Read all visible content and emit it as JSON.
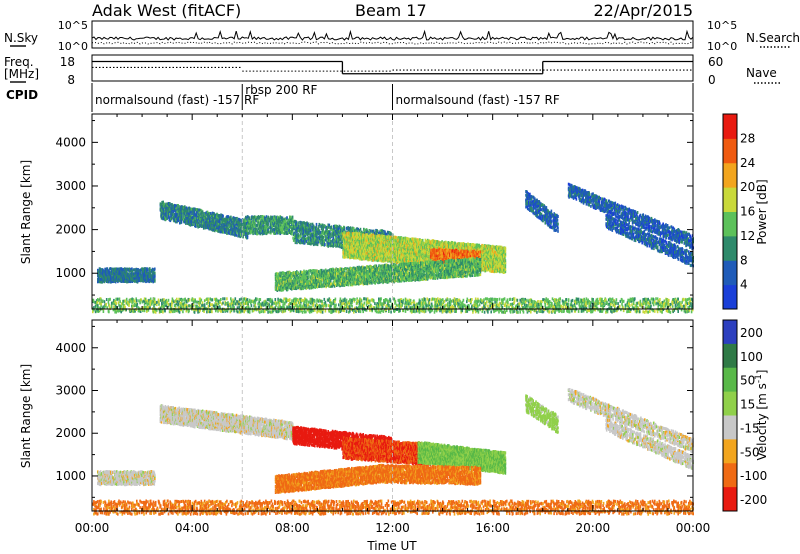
{
  "header": {
    "station": "Adak West (fitACF)",
    "beam": "Beam 17",
    "date": "22/Apr/2015"
  },
  "nsky_panel": {
    "left_label": "N.Sky",
    "right_label": "N.Search",
    "left_ticks": [
      {
        "base": "10",
        "exp": "^5"
      },
      {
        "base": "10",
        "exp": "^0"
      }
    ],
    "right_ticks": [
      {
        "base": "10",
        "exp": "^5"
      },
      {
        "base": "10",
        "exp": "^0"
      }
    ]
  },
  "freq_panel": {
    "left_label_1": "Freq.",
    "left_label_2": "[MHz]",
    "right_label": "Nave",
    "left_ticks": [
      "18",
      "8"
    ],
    "right_ticks": [
      "60",
      "0"
    ],
    "freq_steps": [
      {
        "t0": 0,
        "t1": 10,
        "level": 0.25
      },
      {
        "t0": 10,
        "t1": 18,
        "level": 0.72
      },
      {
        "t0": 18,
        "t1": 24,
        "level": 0.25
      }
    ],
    "nave_steps": [
      {
        "t0": 0,
        "t1": 6,
        "level": 0.48
      },
      {
        "t0": 6,
        "t1": 12,
        "level": 0.62
      },
      {
        "t0": 12,
        "t1": 24,
        "level": 0.58
      }
    ]
  },
  "cpid_panel": {
    "label": "CPID",
    "segments": [
      {
        "t0": 0,
        "t1": 6,
        "text": "normalsound (fast) -157 RF",
        "raised": false
      },
      {
        "t0": 6,
        "t1": 12,
        "text": "rbsp 200 RF",
        "raised": true
      },
      {
        "t0": 12,
        "t1": 24,
        "text": "normalsound (fast) -157 RF",
        "raised": false
      }
    ]
  },
  "x_axis": {
    "label": "Time UT",
    "ticks": [
      "00:00",
      "04:00",
      "08:00",
      "12:00",
      "16:00",
      "20:00",
      "00:00"
    ]
  },
  "chart_data": [
    {
      "type": "heatmap",
      "title": "",
      "xlabel": "Time UT",
      "ylabel": "Slant Range [km]",
      "xlim": [
        0,
        24
      ],
      "ylim": [
        180,
        4650
      ],
      "yticks": [
        "1000",
        "2000",
        "3000",
        "4000"
      ],
      "ytick_values": [
        1000,
        2000,
        3000,
        4000
      ],
      "colorbar": {
        "label": "Power [dB]",
        "ticks": [
          "4",
          "8",
          "12",
          "16",
          "20",
          "24",
          "28"
        ],
        "stops": [
          "#1a3fd8",
          "#1f5bb8",
          "#2e8a6b",
          "#5cc15a",
          "#c9d93a",
          "#f2a51e",
          "#ef5a10",
          "#e81a10"
        ]
      },
      "features": [
        {
          "t0": 2.7,
          "t1": 6.2,
          "r0": 2450,
          "r1": 2000,
          "w": 180,
          "value": 9,
          "density": 0.7
        },
        {
          "t0": 6.0,
          "t1": 8.0,
          "r0": 2100,
          "r1": 2100,
          "w": 180,
          "value": 11,
          "density": 0.6
        },
        {
          "t0": 8.0,
          "t1": 12.0,
          "r0": 1950,
          "r1": 1700,
          "w": 220,
          "value": 10,
          "density": 0.55
        },
        {
          "t0": 10.0,
          "t1": 16.5,
          "r0": 1650,
          "r1": 1300,
          "w": 260,
          "value": 17,
          "density": 0.85
        },
        {
          "t0": 13.5,
          "t1": 15.5,
          "r0": 1400,
          "r1": 1350,
          "w": 120,
          "value": 25,
          "density": 0.7
        },
        {
          "t0": 7.3,
          "t1": 15.5,
          "r0": 800,
          "r1": 1150,
          "w": 200,
          "value": 13,
          "density": 0.7
        },
        {
          "t0": 0.2,
          "t1": 2.5,
          "r0": 950,
          "r1": 950,
          "w": 120,
          "value": 8,
          "density": 0.7
        },
        {
          "t0": 19.0,
          "t1": 24.0,
          "r0": 2900,
          "r1": 1700,
          "w": 150,
          "value": 6,
          "density": 0.5
        },
        {
          "t0": 17.3,
          "t1": 18.6,
          "r0": 2700,
          "r1": 2100,
          "w": 200,
          "value": 6,
          "density": 0.5
        },
        {
          "t0": 20.5,
          "t1": 24.0,
          "r0": 2200,
          "r1": 1300,
          "w": 150,
          "value": 6,
          "density": 0.5
        },
        {
          "t0": 0.0,
          "t1": 24.0,
          "r0": 260,
          "r1": 260,
          "w": 120,
          "value": 14,
          "density": 0.3
        }
      ]
    },
    {
      "type": "heatmap",
      "title": "",
      "xlabel": "Time UT",
      "ylabel": "Slant Range [km]",
      "xlim": [
        0,
        24
      ],
      "ylim": [
        180,
        4650
      ],
      "yticks": [
        "1000",
        "2000",
        "3000",
        "4000"
      ],
      "ytick_values": [
        1000,
        2000,
        3000,
        4000
      ],
      "colorbar": {
        "label": "Velocity [m s^-1]",
        "ticks": [
          "200",
          "100",
          "50",
          "15",
          "-15",
          "-50",
          "-100",
          "-200"
        ],
        "stops": [
          "#2c3fbf",
          "#2f7a46",
          "#58b848",
          "#90d04a",
          "#c8c8c8",
          "#f2a51e",
          "#ef6a14",
          "#e81a10"
        ]
      },
      "features": [
        {
          "t0": 2.7,
          "t1": 8.0,
          "r0": 2450,
          "r1": 2050,
          "w": 180,
          "value": 0,
          "density": 0.75
        },
        {
          "t0": 8.0,
          "t1": 12.0,
          "r0": 1950,
          "r1": 1700,
          "w": 200,
          "value": -200,
          "density": 0.6
        },
        {
          "t0": 10.0,
          "t1": 13.5,
          "r0": 1650,
          "r1": 1500,
          "w": 220,
          "value": -100,
          "density": 0.8
        },
        {
          "t0": 13.0,
          "t1": 16.5,
          "r0": 1550,
          "r1": 1300,
          "w": 240,
          "value": 50,
          "density": 0.85
        },
        {
          "t0": 7.3,
          "t1": 11.5,
          "r0": 800,
          "r1": 1050,
          "w": 200,
          "value": -60,
          "density": 0.75
        },
        {
          "t0": 11.5,
          "t1": 15.5,
          "r0": 1050,
          "r1": 1000,
          "w": 180,
          "value": -60,
          "density": 0.7
        },
        {
          "t0": 0.2,
          "t1": 2.5,
          "r0": 950,
          "r1": 950,
          "w": 150,
          "value": 0,
          "density": 0.7
        },
        {
          "t0": 19.0,
          "t1": 24.0,
          "r0": 2900,
          "r1": 1700,
          "w": 140,
          "value": 0,
          "density": 0.45
        },
        {
          "t0": 17.3,
          "t1": 18.6,
          "r0": 2700,
          "r1": 2200,
          "w": 200,
          "value": 30,
          "density": 0.5
        },
        {
          "t0": 20.5,
          "t1": 24.0,
          "r0": 2200,
          "r1": 1300,
          "w": 150,
          "value": 0,
          "density": 0.45
        },
        {
          "t0": 0.0,
          "t1": 24.0,
          "r0": 260,
          "r1": 260,
          "w": 120,
          "value": -60,
          "density": 0.3
        }
      ]
    }
  ]
}
